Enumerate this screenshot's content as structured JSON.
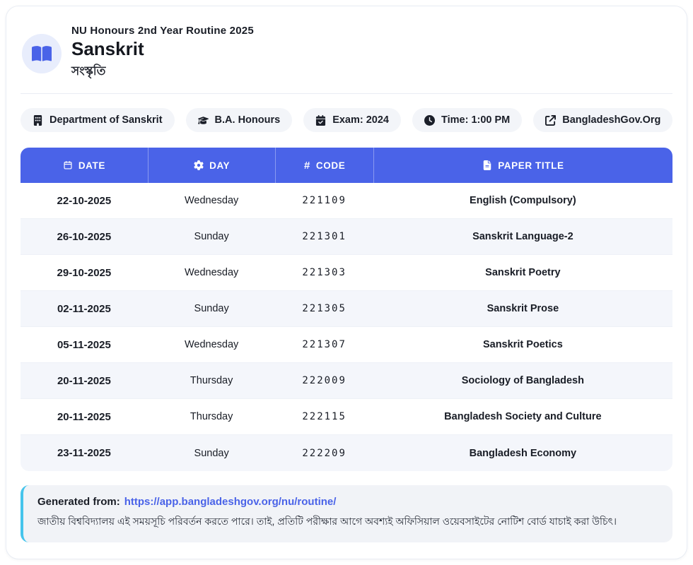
{
  "header": {
    "subtitle": "NU Honours 2nd Year Routine 2025",
    "title": "Sanskrit",
    "title_bn": "সংস্কৃতি",
    "icon": "open-book-icon"
  },
  "chips": [
    {
      "icon": "building-icon",
      "label": "Department of Sanskrit"
    },
    {
      "icon": "graduation-cap-icon",
      "label": "B.A. Honours"
    },
    {
      "icon": "calendar-check-icon",
      "label": "Exam: 2024"
    },
    {
      "icon": "clock-icon",
      "label": "Time: 1:00 PM"
    },
    {
      "icon": "external-link-icon",
      "label": "BangladeshGov.Org"
    }
  ],
  "table": {
    "columns": [
      {
        "icon": "calendar-icon",
        "label": "DATE"
      },
      {
        "icon": "gear-icon",
        "label": "DAY"
      },
      {
        "icon": "hash-icon",
        "label": "CODE"
      },
      {
        "icon": "file-icon",
        "label": "PAPER TITLE"
      }
    ],
    "rows": [
      {
        "date": "22-10-2025",
        "day": "Wednesday",
        "code": "221109",
        "title": "English (Compulsory)"
      },
      {
        "date": "26-10-2025",
        "day": "Sunday",
        "code": "221301",
        "title": "Sanskrit Language-2"
      },
      {
        "date": "29-10-2025",
        "day": "Wednesday",
        "code": "221303",
        "title": "Sanskrit Poetry"
      },
      {
        "date": "02-11-2025",
        "day": "Sunday",
        "code": "221305",
        "title": "Sanskrit Prose"
      },
      {
        "date": "05-11-2025",
        "day": "Wednesday",
        "code": "221307",
        "title": "Sanskrit Poetics"
      },
      {
        "date": "20-11-2025",
        "day": "Thursday",
        "code": "222009",
        "title": "Sociology of Bangladesh"
      },
      {
        "date": "20-11-2025",
        "day": "Thursday",
        "code": "222115",
        "title": "Bangladesh Society and Culture"
      },
      {
        "date": "23-11-2025",
        "day": "Sunday",
        "code": "222209",
        "title": "Bangladesh Economy"
      }
    ]
  },
  "footer": {
    "generated_label": "Generated from:",
    "generated_url": "https://app.bangladeshgov.org/nu/routine/",
    "note_bn": "জাতীয় বিশ্ববিদ্যালয় এই সময়সূচি পরিবর্তন করতে পারে। তাই, প্রতিটি পরীক্ষার আগে অবশ্যই অফিসিয়াল ওয়েবসাইটের নোটিশ বোর্ড যাচাই করা উচিৎ।"
  },
  "colors": {
    "accent": "#4a63e8",
    "accent_soft": "#e8edfc",
    "chip_bg": "#f3f5f9",
    "row_alt_bg": "#f4f6fb",
    "footer_bg": "#f1f3f7",
    "footer_accent": "#45c4ec",
    "link": "#4a63e8",
    "text": "#191d26"
  }
}
